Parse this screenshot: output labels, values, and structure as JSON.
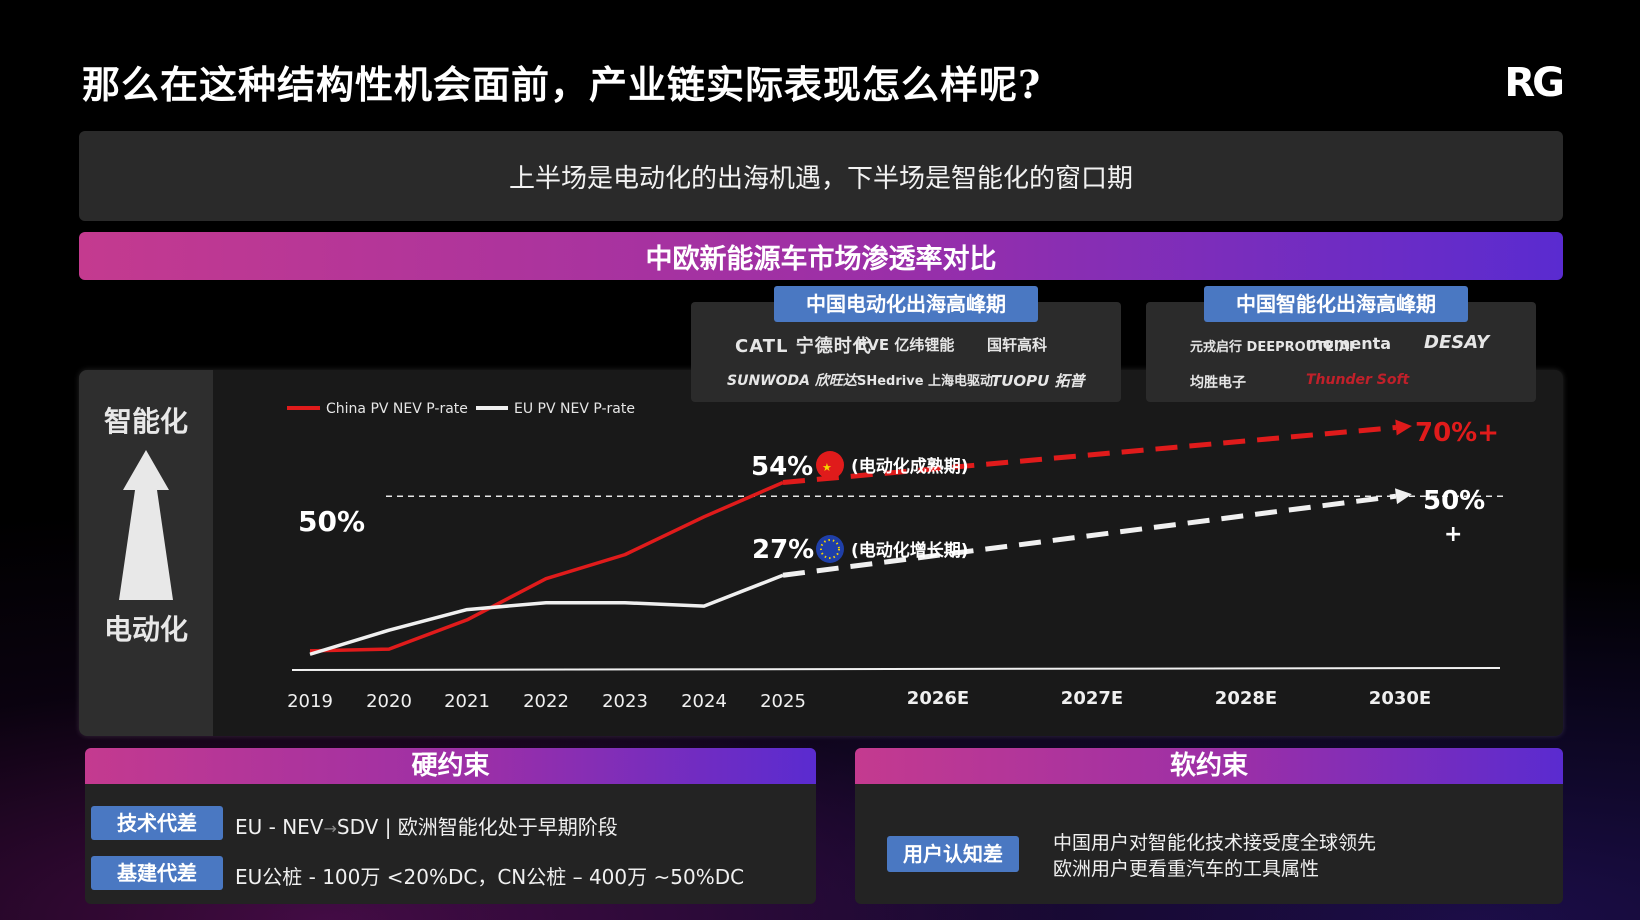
{
  "page": {
    "title": "那么在这种结构性机会面前，产业链实际表现怎么样呢?",
    "logo": "RG",
    "subtitle": "上半场是电动化的出海机遇，下半场是智能化的窗口期",
    "section_title": "中欧新能源车市场渗透率对比"
  },
  "side": {
    "top_label": "智能化",
    "bottom_label": "电动化"
  },
  "eras": {
    "electrification": {
      "label": "中国电动化出海高峰期",
      "brands": [
        "CATL 宁德时代",
        "EVE 亿纬锂能",
        "国轩高科",
        "SUNWODA 欣旺达",
        "SHedrive 上海电驱动",
        "TUOPU 拓普"
      ]
    },
    "intelligence": {
      "label": "中国智能化出海高峰期",
      "brands": [
        "元戎启行 DEEPROUTE.AI",
        "momenta",
        "DESAY",
        "均胜电子",
        "Thunder Soft"
      ]
    }
  },
  "chart_data": {
    "type": "line",
    "legend": [
      "China PV NEV P-rate",
      "EU PV NEV P-rate"
    ],
    "legend_position": "top-left",
    "x": [
      "2019",
      "2020",
      "2021",
      "2022",
      "2023",
      "2024",
      "2025",
      "2026E",
      "2027E",
      "2028E",
      "2030E"
    ],
    "series": [
      {
        "name": "China PV NEV P-rate",
        "color": "#e01b1b",
        "actual": [
          5,
          5.5,
          14,
          26,
          33,
          44,
          54
        ],
        "projection_end": 70,
        "label_2025": "54%",
        "annotation": "(电动化成熟期)",
        "end_label": "70%+"
      },
      {
        "name": "EU PV NEV P-rate",
        "color": "#f0f0f0",
        "actual": [
          4,
          11,
          17,
          19,
          19,
          18,
          27
        ],
        "projection_end": 50,
        "label_2025": "27%",
        "annotation": "(电动化增长期)",
        "end_label": "50%",
        "end_label_suffix": "+"
      }
    ],
    "reference_line": {
      "value": 50,
      "label": "50%"
    },
    "ylim": [
      0,
      78
    ]
  },
  "bottom": {
    "hard": {
      "title": "硬约束",
      "rows": [
        {
          "tag": "技术代差",
          "text_a": "EU - NEV",
          "text_b": "SDV  |  欧洲智能化处于早期阶段"
        },
        {
          "tag": "基建代差",
          "text": "EU公桩 - 100万 <20%DC，CN公桩 – 400万 ~50%DC"
        }
      ]
    },
    "soft": {
      "title": "软约束",
      "tag": "用户认知差",
      "lines": [
        "中国用户对智能化技术接受度全球领先",
        "欧洲用户更看重汽车的工具属性"
      ]
    }
  }
}
